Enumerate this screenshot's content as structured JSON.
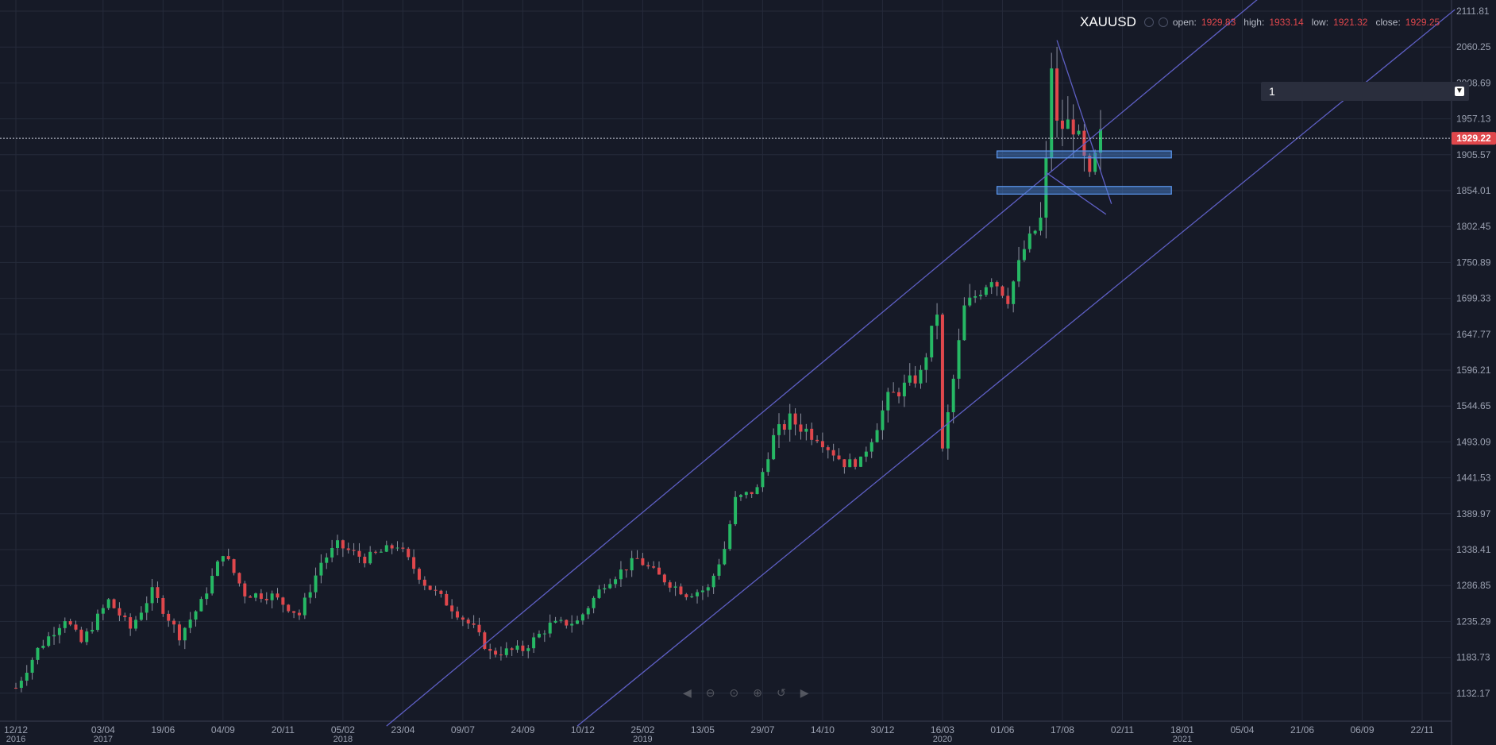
{
  "legend": {
    "symbol": "XAUUSD",
    "open_label": "open:",
    "open_value": "1929.83",
    "high_label": "high:",
    "high_value": "1933.14",
    "low_label": "low:",
    "low_value": "1921.32",
    "close_label": "close:",
    "close_value": "1929.25"
  },
  "dropdown": {
    "value": "1"
  },
  "toolbar": {
    "icons": [
      "prev-icon",
      "zoom-out-icon",
      "zoom-reset-icon",
      "zoom-in-icon",
      "reset-icon",
      "next-icon"
    ]
  },
  "colors": {
    "up": "#26b864",
    "down": "#e0474c",
    "trendline": "#5e5fc4",
    "zone": "#4a86d8",
    "price_badge": "#e0474c"
  },
  "chart_data": {
    "type": "candlestick",
    "symbol": "XAUUSD",
    "last_price": "1929.22",
    "y_range": [
      1106,
      2124
    ],
    "y_ticks": [
      "2111.81",
      "2060.25",
      "2008.69",
      "1957.13",
      "1905.57",
      "1854.01",
      "1802.45",
      "1750.89",
      "1699.33",
      "1647.77",
      "1596.21",
      "1544.65",
      "1493.09",
      "1441.53",
      "1389.97",
      "1338.41",
      "1286.85",
      "1235.29",
      "1183.73",
      "1132.17"
    ],
    "x_ticks": [
      {
        "date": "2016-12-12",
        "label": "12/12",
        "sub": "2016"
      },
      {
        "date": "2017-04-03",
        "label": "03/04",
        "sub": "2017"
      },
      {
        "date": "2017-06-19",
        "label": "19/06",
        "sub": ""
      },
      {
        "date": "2017-09-04",
        "label": "04/09",
        "sub": ""
      },
      {
        "date": "2017-11-20",
        "label": "20/11",
        "sub": ""
      },
      {
        "date": "2018-02-05",
        "label": "05/02",
        "sub": "2018"
      },
      {
        "date": "2018-04-23",
        "label": "23/04",
        "sub": ""
      },
      {
        "date": "2018-07-09",
        "label": "09/07",
        "sub": ""
      },
      {
        "date": "2018-09-24",
        "label": "24/09",
        "sub": ""
      },
      {
        "date": "2018-12-10",
        "label": "10/12",
        "sub": ""
      },
      {
        "date": "2019-02-25",
        "label": "25/02",
        "sub": "2019"
      },
      {
        "date": "2019-05-13",
        "label": "13/05",
        "sub": ""
      },
      {
        "date": "2019-07-29",
        "label": "29/07",
        "sub": ""
      },
      {
        "date": "2019-10-14",
        "label": "14/10",
        "sub": ""
      },
      {
        "date": "2019-12-30",
        "label": "30/12",
        "sub": ""
      },
      {
        "date": "2020-03-16",
        "label": "16/03",
        "sub": "2020"
      },
      {
        "date": "2020-06-01",
        "label": "01/06",
        "sub": ""
      },
      {
        "date": "2020-08-17",
        "label": "17/08",
        "sub": ""
      },
      {
        "date": "2020-11-02",
        "label": "02/11",
        "sub": ""
      },
      {
        "date": "2021-01-18",
        "label": "18/01",
        "sub": "2021"
      },
      {
        "date": "2021-04-05",
        "label": "05/04",
        "sub": ""
      },
      {
        "date": "2021-06-21",
        "label": "21/06",
        "sub": ""
      },
      {
        "date": "2021-09-06",
        "label": "06/09",
        "sub": ""
      },
      {
        "date": "2021-11-22",
        "label": "22/11",
        "sub": ""
      }
    ],
    "price_path": [
      [
        "2016-12-12",
        1140
      ],
      [
        "2017-01-09",
        1195
      ],
      [
        "2017-02-13",
        1240
      ],
      [
        "2017-03-06",
        1205
      ],
      [
        "2017-04-10",
        1265
      ],
      [
        "2017-05-08",
        1225
      ],
      [
        "2017-06-05",
        1278
      ],
      [
        "2017-07-10",
        1215
      ],
      [
        "2017-08-07",
        1262
      ],
      [
        "2017-09-04",
        1335
      ],
      [
        "2017-10-02",
        1275
      ],
      [
        "2017-11-06",
        1272
      ],
      [
        "2017-12-11",
        1245
      ],
      [
        "2018-01-08",
        1320
      ],
      [
        "2018-01-29",
        1345
      ],
      [
        "2018-03-05",
        1325
      ],
      [
        "2018-04-16",
        1345
      ],
      [
        "2018-05-21",
        1290
      ],
      [
        "2018-06-25",
        1255
      ],
      [
        "2018-07-23",
        1225
      ],
      [
        "2018-08-13",
        1190
      ],
      [
        "2018-09-24",
        1195
      ],
      [
        "2018-10-29",
        1230
      ],
      [
        "2018-12-03",
        1235
      ],
      [
        "2019-01-07",
        1290
      ],
      [
        "2019-02-18",
        1325
      ],
      [
        "2019-03-18",
        1300
      ],
      [
        "2019-04-22",
        1275
      ],
      [
        "2019-05-20",
        1282
      ],
      [
        "2019-06-10",
        1340
      ],
      [
        "2019-06-24",
        1410
      ],
      [
        "2019-07-22",
        1425
      ],
      [
        "2019-08-12",
        1500
      ],
      [
        "2019-09-02",
        1525
      ],
      [
        "2019-10-07",
        1500
      ],
      [
        "2019-11-11",
        1462
      ],
      [
        "2019-12-02",
        1465
      ],
      [
        "2020-01-06",
        1555
      ],
      [
        "2020-02-17",
        1590
      ],
      [
        "2020-03-09",
        1680
      ],
      [
        "2020-03-16",
        1480
      ],
      [
        "2020-04-13",
        1685
      ],
      [
        "2020-05-18",
        1730
      ],
      [
        "2020-06-08",
        1700
      ],
      [
        "2020-06-29",
        1770
      ],
      [
        "2020-07-20",
        1810
      ],
      [
        "2020-07-27",
        1890
      ],
      [
        "2020-08-03",
        2035
      ],
      [
        "2020-08-10",
        1945
      ],
      [
        "2020-08-31",
        1950
      ],
      [
        "2020-09-21",
        1865
      ],
      [
        "2020-10-05",
        1929
      ]
    ],
    "trendlines": [
      {
        "from": [
          "2018-04-02",
          1085
        ],
        "to": [
          "2021-04-26",
          2130
        ]
      },
      {
        "from": [
          "2018-12-03",
          1085
        ],
        "to": [
          "2022-01-03",
          2114
        ]
      },
      {
        "from": [
          "2020-08-10",
          2070
        ],
        "to": [
          "2020-10-19",
          1835
        ]
      },
      {
        "from": [
          "2020-07-27",
          1880
        ],
        "to": [
          "2020-10-12",
          1820
        ]
      }
    ],
    "zones": [
      {
        "from": "2020-05-25",
        "to": "2021-01-04",
        "low": 1901,
        "high": 1911
      },
      {
        "from": "2020-05-25",
        "to": "2021-01-04",
        "low": 1849,
        "high": 1860
      }
    ],
    "grid": true,
    "axis_position": "right"
  }
}
